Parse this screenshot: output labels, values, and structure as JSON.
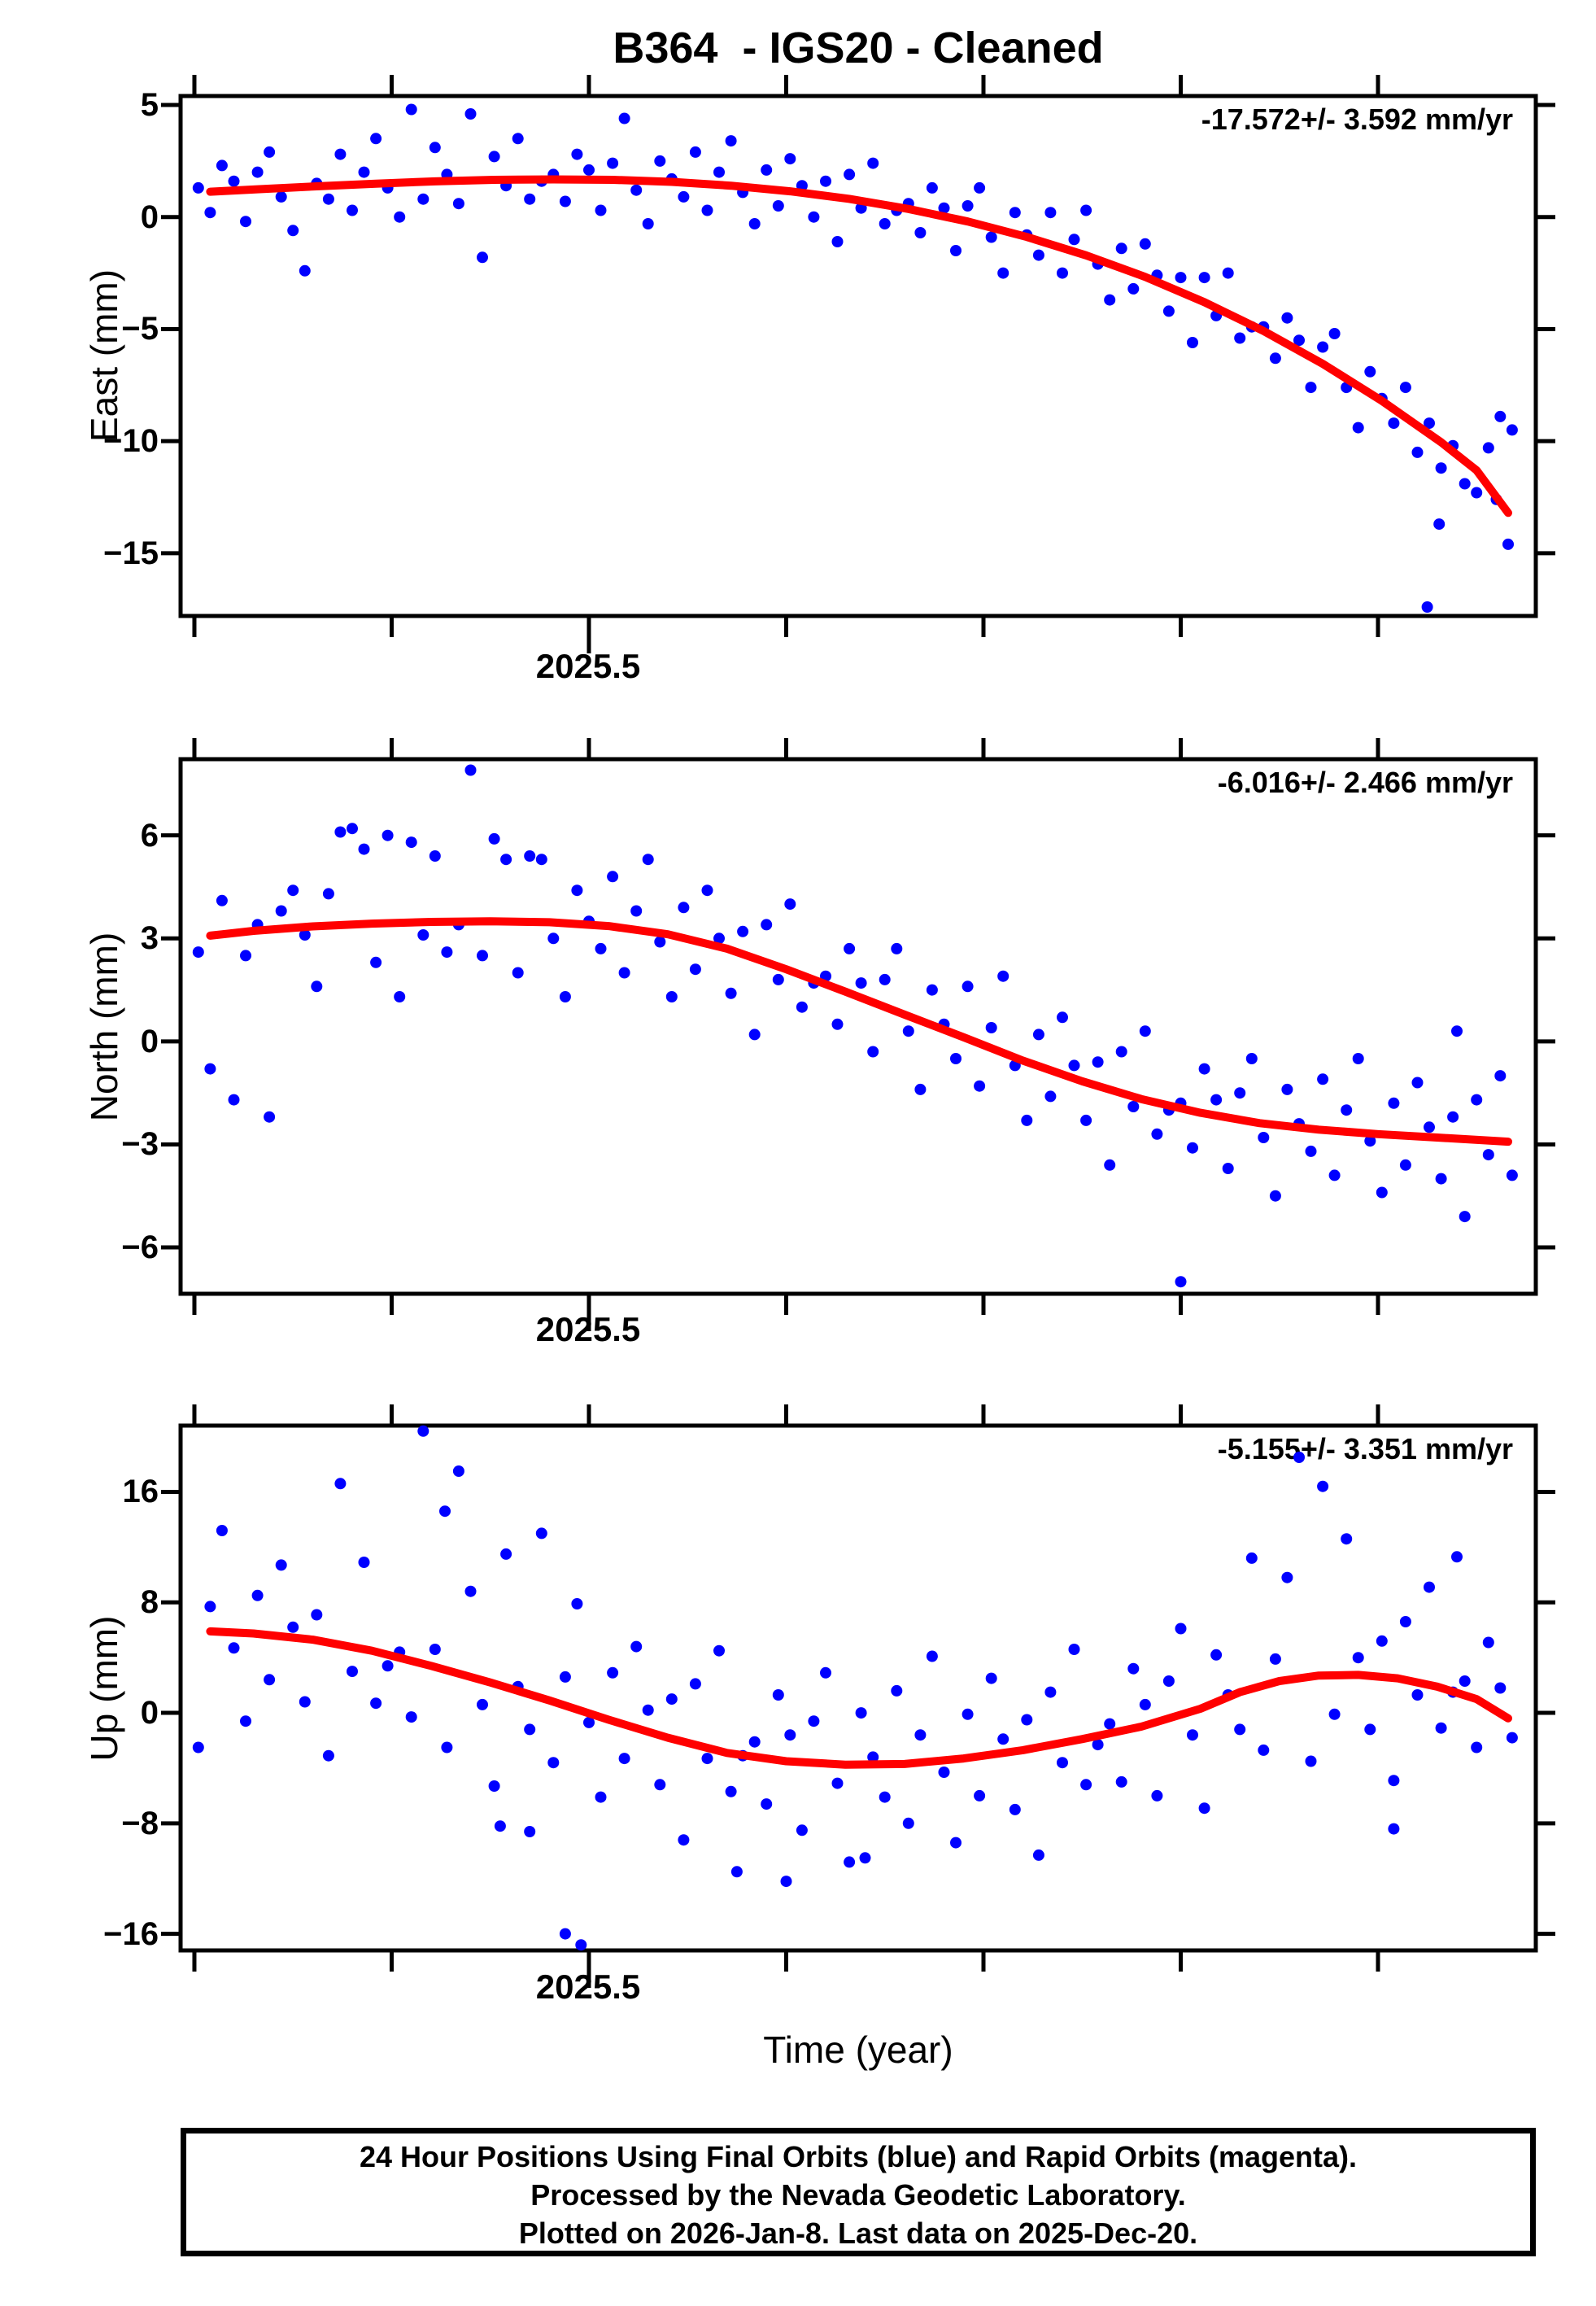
{
  "title": "B364  - IGS20 - Cleaned",
  "xlabel": "Time (year)",
  "colors": {
    "points": "#0000ff",
    "trend": "#ff0000",
    "frame": "#000000",
    "text": "#000000",
    "background": "#ffffff"
  },
  "footer": {
    "line1": "24 Hour Positions Using Final Orbits (blue) and Rapid Orbits (magenta).",
    "line2": "Processed by the Nevada Geodetic Laboratory.",
    "line3": "Plotted on 2026-Jan-8. Last data on 2025-Dec-20."
  },
  "chart_data": [
    {
      "type": "scatter",
      "name": "East",
      "ylabel": "East (mm)",
      "rate_label": "-17.572+/- 3.592 mm/yr",
      "xlim": [
        2025.293,
        2025.98
      ],
      "ylim": [
        -17.8,
        5.4
      ],
      "xticks": [
        2025.3,
        2025.4,
        2025.5,
        2025.6,
        2025.7,
        2025.8,
        2025.9
      ],
      "xtick_major": 2025.5,
      "xtick_label": "2025.5",
      "yticks": [
        5,
        0,
        -5,
        -10,
        -15
      ],
      "ytick_labels": [
        "5",
        "0",
        "−5",
        "−10",
        "−15"
      ],
      "points": {
        "t_start": 2025.302,
        "t_step": 0.006,
        "values": [
          1.3,
          0.2,
          2.3,
          1.6,
          -0.2,
          2.0,
          2.9,
          0.9,
          -0.6,
          -2.4,
          1.5,
          0.8,
          2.8,
          0.3,
          2.0,
          3.5,
          1.3,
          0.0,
          4.8,
          0.8,
          3.1,
          1.9,
          0.6,
          4.6,
          -1.8,
          2.7,
          1.4,
          3.5,
          0.8,
          1.6,
          1.9,
          0.7,
          2.8,
          2.1,
          0.3,
          2.4,
          4.4,
          1.2,
          -0.3,
          2.5,
          1.7,
          0.9,
          2.9,
          0.3,
          2.0,
          3.4,
          1.1,
          -0.3,
          2.1,
          0.5,
          2.6,
          1.4,
          0.0,
          1.6,
          -1.1,
          1.9,
          0.4,
          2.4,
          -0.3,
          0.3,
          0.6,
          -0.7,
          1.3,
          0.4,
          -1.5,
          0.5,
          1.3,
          -0.9,
          -2.5,
          0.2,
          -0.8,
          -1.7,
          0.2,
          -2.5,
          -1.0,
          0.3,
          -2.1,
          -3.7,
          -1.4,
          -3.2,
          -1.2,
          -2.6,
          -4.2,
          -2.7,
          -5.6,
          -2.7,
          -4.4,
          -2.5,
          -5.4,
          -4.9,
          -4.9,
          -6.3,
          -4.5,
          -5.5,
          -7.6,
          -5.8,
          -5.2,
          -7.6,
          -9.4,
          -6.9,
          -8.1,
          -9.2,
          -7.6,
          -10.5,
          -9.2,
          -11.2,
          -10.2,
          -11.9,
          -12.3,
          -10.3,
          -8.9,
          -9.5
        ]
      },
      "extra_points": [
        [
          2025.925,
          -17.4
        ],
        [
          2025.931,
          -13.7
        ],
        [
          2025.96,
          -12.6
        ],
        [
          2025.966,
          -14.6
        ]
      ],
      "trend": [
        [
          2025.308,
          1.13
        ],
        [
          2025.332,
          1.24
        ],
        [
          2025.362,
          1.37
        ],
        [
          2025.392,
          1.49
        ],
        [
          2025.422,
          1.59
        ],
        [
          2025.452,
          1.66
        ],
        [
          2025.482,
          1.68
        ],
        [
          2025.512,
          1.66
        ],
        [
          2025.542,
          1.57
        ],
        [
          2025.572,
          1.4
        ],
        [
          2025.602,
          1.15
        ],
        [
          2025.632,
          0.81
        ],
        [
          2025.662,
          0.36
        ],
        [
          2025.692,
          -0.2
        ],
        [
          2025.722,
          -0.89
        ],
        [
          2025.752,
          -1.71
        ],
        [
          2025.782,
          -2.67
        ],
        [
          2025.812,
          -3.8
        ],
        [
          2025.842,
          -5.08
        ],
        [
          2025.872,
          -6.55
        ],
        [
          2025.902,
          -8.2
        ],
        [
          2025.932,
          -10.05
        ],
        [
          2025.95,
          -11.3
        ],
        [
          2025.966,
          -13.2
        ]
      ]
    },
    {
      "type": "scatter",
      "name": "North",
      "ylabel": "North (mm)",
      "rate_label": "-6.016+/- 2.466 mm/yr",
      "xlim": [
        2025.293,
        2025.98
      ],
      "ylim": [
        -7.35,
        8.22
      ],
      "xticks": [
        2025.3,
        2025.4,
        2025.5,
        2025.6,
        2025.7,
        2025.8,
        2025.9
      ],
      "xtick_major": 2025.5,
      "xtick_label": "2025.5",
      "yticks": [
        6,
        3,
        0,
        -3,
        -6
      ],
      "ytick_labels": [
        "6",
        "3",
        "0",
        "−3",
        "−6"
      ],
      "points": {
        "t_start": 2025.302,
        "t_step": 0.006,
        "values": [
          2.6,
          -0.8,
          4.1,
          -1.7,
          2.5,
          3.4,
          -2.2,
          3.8,
          4.4,
          3.1,
          1.6,
          4.3,
          6.1,
          6.2,
          5.6,
          2.3,
          6.0,
          1.3,
          5.8,
          3.1,
          5.4,
          2.6,
          3.4,
          7.9,
          2.5,
          5.9,
          5.3,
          2.0,
          5.4,
          5.3,
          3.0,
          1.3,
          4.4,
          3.5,
          2.7,
          4.8,
          2.0,
          3.8,
          5.3,
          2.9,
          1.3,
          3.9,
          2.1,
          4.4,
          3.0,
          1.4,
          3.2,
          0.2,
          3.4,
          1.8,
          4.0,
          1.0,
          1.7,
          1.9,
          0.5,
          2.7,
          1.7,
          -0.3,
          1.8,
          2.7,
          0.3,
          -1.4,
          1.5,
          0.5,
          -0.5,
          1.6,
          -1.3,
          0.4,
          1.9,
          -0.7,
          -2.3,
          0.2,
          -1.6,
          0.7,
          -0.7,
          -2.3,
          -0.6,
          -3.6,
          -0.3,
          -1.9,
          0.3,
          -2.7,
          -2.0,
          -1.8,
          -3.1,
          -0.8,
          -1.7,
          -3.7,
          -1.5,
          -0.5,
          -2.8,
          -4.5,
          -1.4,
          -2.4,
          -3.2,
          -1.1,
          -3.9,
          -2.0,
          -0.5,
          -2.9,
          -4.4,
          -1.8,
          -3.6,
          -1.2,
          -2.5,
          -4.0,
          -2.2,
          -5.1,
          -1.7,
          -3.3,
          -1.0,
          -3.9
        ]
      },
      "extra_points": [
        [
          2025.8,
          -7.0
        ],
        [
          2025.94,
          0.3
        ]
      ],
      "trend": [
        [
          2025.308,
          3.08
        ],
        [
          2025.33,
          3.22
        ],
        [
          2025.36,
          3.35
        ],
        [
          2025.39,
          3.43
        ],
        [
          2025.42,
          3.48
        ],
        [
          2025.45,
          3.5
        ],
        [
          2025.48,
          3.47
        ],
        [
          2025.51,
          3.36
        ],
        [
          2025.54,
          3.12
        ],
        [
          2025.57,
          2.7
        ],
        [
          2025.6,
          2.1
        ],
        [
          2025.63,
          1.45
        ],
        [
          2025.66,
          0.78
        ],
        [
          2025.69,
          0.12
        ],
        [
          2025.72,
          -0.56
        ],
        [
          2025.75,
          -1.16
        ],
        [
          2025.78,
          -1.68
        ],
        [
          2025.81,
          -2.08
        ],
        [
          2025.84,
          -2.38
        ],
        [
          2025.87,
          -2.57
        ],
        [
          2025.9,
          -2.7
        ],
        [
          2025.93,
          -2.8
        ],
        [
          2025.96,
          -2.9
        ],
        [
          2025.966,
          -2.92
        ]
      ]
    },
    {
      "type": "scatter",
      "name": "Up",
      "ylabel": "Up (mm)",
      "rate_label": "-5.155+/- 3.351 mm/yr",
      "xlim": [
        2025.293,
        2025.98
      ],
      "ylim": [
        -17.2,
        20.8
      ],
      "xticks": [
        2025.3,
        2025.4,
        2025.5,
        2025.6,
        2025.7,
        2025.8,
        2025.9
      ],
      "xtick_major": 2025.5,
      "xtick_label": "2025.5",
      "yticks": [
        16,
        8,
        0,
        -8,
        -16
      ],
      "ytick_labels": [
        "16",
        "8",
        "0",
        "−8",
        "−16"
      ],
      "points": {
        "t_start": 2025.302,
        "t_step": 0.006,
        "values": [
          -2.5,
          7.7,
          13.2,
          4.7,
          -0.6,
          8.5,
          2.4,
          10.7,
          6.2,
          0.8,
          7.1,
          -3.1,
          16.6,
          3.0,
          10.9,
          0.7,
          3.4,
          4.4,
          -0.3,
          20.4,
          4.6,
          -2.5,
          17.5,
          8.8,
          0.6,
          -5.3,
          11.5,
          1.9,
          -1.2,
          13.0,
          -3.6,
          2.6,
          7.9,
          -0.7,
          -6.1,
          2.9,
          -3.3,
          4.8,
          0.2,
          -5.2,
          1.0,
          -9.2,
          2.1,
          -3.3,
          4.5,
          -5.7,
          -3.1,
          -2.1,
          -6.6,
          1.3,
          -1.6,
          -8.5,
          -0.6,
          2.9,
          -5.1,
          -10.8,
          0.0,
          -3.2,
          -6.1,
          1.6,
          -8.0,
          -1.6,
          4.1,
          -4.3,
          -9.4,
          -0.1,
          -6.0,
          2.5,
          -1.9,
          -7.0,
          -0.5,
          -10.3,
          1.5,
          -3.6,
          4.6,
          -5.2,
          -2.3,
          -0.8,
          -5.0,
          3.2,
          0.6,
          -6.0,
          2.3,
          6.1,
          -1.6,
          -6.9,
          4.2,
          1.3,
          -1.2,
          11.2,
          -2.7,
          3.9,
          9.8,
          18.5,
          -3.5,
          16.4,
          -0.1,
          12.6,
          4.0,
          -1.2,
          5.2,
          -4.9,
          6.6,
          1.3,
          9.1,
          -1.1,
          1.5,
          2.3,
          -2.5,
          5.1,
          1.8,
          -1.8
        ]
      },
      "extra_points": [
        [
          2025.427,
          14.6
        ],
        [
          2025.455,
          -8.2
        ],
        [
          2025.47,
          -8.6
        ],
        [
          2025.488,
          -16.0
        ],
        [
          2025.496,
          -16.8
        ],
        [
          2025.575,
          -11.5
        ],
        [
          2025.6,
          -12.2
        ],
        [
          2025.64,
          -10.5
        ],
        [
          2025.908,
          -8.4
        ],
        [
          2025.94,
          11.3
        ]
      ],
      "trend": [
        [
          2025.308,
          5.9
        ],
        [
          2025.33,
          5.75
        ],
        [
          2025.36,
          5.3
        ],
        [
          2025.39,
          4.5
        ],
        [
          2025.42,
          3.4
        ],
        [
          2025.45,
          2.2
        ],
        [
          2025.48,
          0.9
        ],
        [
          2025.51,
          -0.5
        ],
        [
          2025.54,
          -1.8
        ],
        [
          2025.57,
          -2.9
        ],
        [
          2025.6,
          -3.5
        ],
        [
          2025.63,
          -3.75
        ],
        [
          2025.66,
          -3.7
        ],
        [
          2025.69,
          -3.3
        ],
        [
          2025.72,
          -2.7
        ],
        [
          2025.75,
          -1.9
        ],
        [
          2025.78,
          -1.0
        ],
        [
          2025.81,
          0.3
        ],
        [
          2025.83,
          1.5
        ],
        [
          2025.85,
          2.3
        ],
        [
          2025.87,
          2.7
        ],
        [
          2025.89,
          2.75
        ],
        [
          2025.91,
          2.5
        ],
        [
          2025.93,
          1.9
        ],
        [
          2025.95,
          1.0
        ],
        [
          2025.966,
          -0.4
        ]
      ]
    }
  ]
}
